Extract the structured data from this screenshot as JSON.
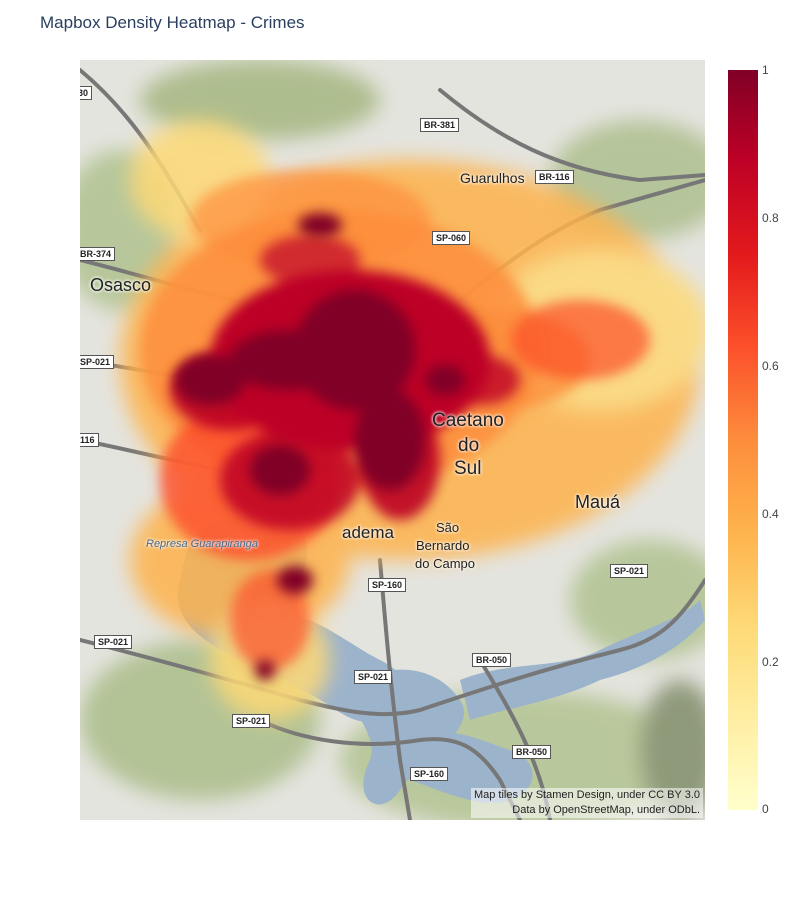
{
  "title": "Mapbox Density Heatmap - Crimes",
  "attribution": {
    "line1": "Map tiles by Stamen Design, under CC BY 3.0",
    "line2": "Data by OpenStreetMap, under ODbL."
  },
  "colorbar": {
    "colorscale": "YlOrRd",
    "range": [
      0,
      1
    ],
    "ticks": [
      "0",
      "0.2",
      "0.4",
      "0.6",
      "0.8",
      "1"
    ]
  },
  "places": {
    "osasco": "Osasco",
    "guarulhos": "Guarulhos",
    "caetano": "Caetano",
    "do": "do",
    "sul": "Sul",
    "maua": "Mauá",
    "diadema": "adema",
    "sao": "São",
    "bernardo": "Bernardo",
    "do_campo": "do Campo",
    "represa": "Represa Guarapiranga"
  },
  "road_shields": {
    "br381": "BR-381",
    "br116": "BR-116",
    "sp060": "SP-060",
    "br374": "BR-374",
    "sp021_w": "SP-021",
    "s116_w": "116",
    "s30": "30",
    "sp160_a": "SP-160",
    "sp021_e": "SP-021",
    "sp021_sw": "SP-021",
    "br050_a": "BR-050",
    "sp021_s": "SP-021",
    "sp021_ss": "SP-021",
    "br050_b": "BR-050",
    "sp160_b": "SP-160"
  },
  "colors": {
    "heat_max": "#800026",
    "heat_high": "#bd0026",
    "heat_mid": "#fc4e2a",
    "heat_low": "#feb24c",
    "heat_min": "#ffffcc",
    "water": "#9cb3cc",
    "land": "#e6e6e1",
    "green": "#b7c79b"
  }
}
